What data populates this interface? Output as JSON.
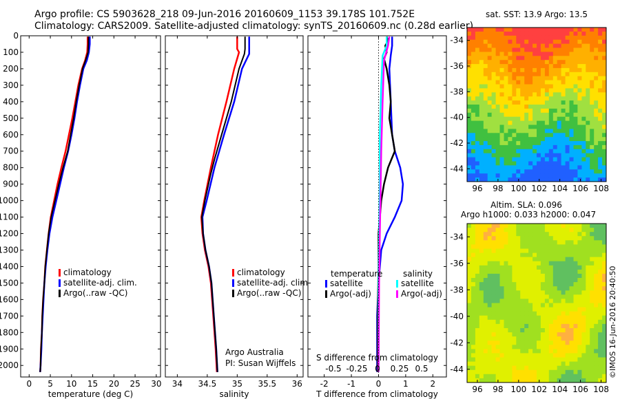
{
  "header": {
    "line1": "Argo profile: CS 5903628_218 09-Jun-2016 20160609_1153 39.178S 101.752E",
    "line2": "Climatology: CARS2009. Satellite-adjusted climatology: synTS_20160609.nc (0.28d earlier)"
  },
  "credits": {
    "line1": "Argo Australia",
    "line2": "PI: Susan Wijffels"
  },
  "stamp": "©IMOS 16-Jun-2016 20:40:50",
  "colors": {
    "climatology": "#ff0000",
    "satellite": "#0000ff",
    "argo": "#000000",
    "sat_salinity": "#00ffff",
    "argo_salinity": "#ff00ff"
  },
  "chart_data": [
    {
      "type": "line",
      "xlabel": "temperature (deg C)",
      "xlim": [
        -2,
        31
      ],
      "ylim": [
        2070,
        0
      ],
      "xticks": [
        0,
        5,
        10,
        15,
        20,
        25,
        30
      ],
      "yticks": [
        0,
        100,
        200,
        300,
        400,
        500,
        600,
        700,
        800,
        900,
        1000,
        1100,
        1200,
        1300,
        1400,
        1500,
        1600,
        1700,
        1800,
        1900,
        2000
      ],
      "legend": [
        "climatology",
        "satellite-adj. clim.",
        "Argo(..raw -QC)"
      ],
      "series": [
        {
          "name": "climatology",
          "points": [
            [
              13.8,
              5
            ],
            [
              13.8,
              50
            ],
            [
              13.7,
              100
            ],
            [
              13.2,
              150
            ],
            [
              12.5,
              200
            ],
            [
              11.6,
              300
            ],
            [
              10.9,
              400
            ],
            [
              10.2,
              500
            ],
            [
              9.4,
              600
            ],
            [
              8.6,
              700
            ],
            [
              7.6,
              800
            ],
            [
              6.7,
              900
            ],
            [
              5.9,
              1000
            ],
            [
              5.1,
              1100
            ],
            [
              4.6,
              1200
            ],
            [
              4.2,
              1300
            ],
            [
              3.8,
              1400
            ],
            [
              3.6,
              1500
            ],
            [
              3.3,
              1600
            ],
            [
              3.1,
              1700
            ],
            [
              3.0,
              1800
            ],
            [
              2.8,
              1900
            ],
            [
              2.7,
              2000
            ],
            [
              2.6,
              2040
            ]
          ]
        },
        {
          "name": "satellite-adj. clim.",
          "points": [
            [
              14.3,
              5
            ],
            [
              14.3,
              50
            ],
            [
              14.1,
              100
            ],
            [
              13.6,
              150
            ],
            [
              12.8,
              200
            ],
            [
              12.0,
              300
            ],
            [
              11.3,
              400
            ],
            [
              10.7,
              500
            ],
            [
              10.0,
              600
            ],
            [
              9.2,
              700
            ],
            [
              8.2,
              800
            ],
            [
              7.3,
              900
            ],
            [
              6.4,
              1000
            ],
            [
              5.5,
              1100
            ],
            [
              4.8,
              1200
            ],
            [
              4.3,
              1300
            ],
            [
              3.9,
              1400
            ],
            [
              3.6,
              1500
            ],
            [
              3.4,
              1600
            ],
            [
              3.2,
              1700
            ],
            [
              3.0,
              1800
            ],
            [
              2.9,
              1900
            ],
            [
              2.7,
              2000
            ],
            [
              2.6,
              2040
            ]
          ]
        },
        {
          "name": "Argo(..raw -QC)",
          "points": [
            [
              14.0,
              5
            ],
            [
              14.0,
              50
            ],
            [
              13.9,
              100
            ],
            [
              13.3,
              150
            ],
            [
              12.6,
              200
            ],
            [
              11.8,
              300
            ],
            [
              11.1,
              400
            ],
            [
              10.5,
              500
            ],
            [
              9.8,
              600
            ],
            [
              9.1,
              700
            ],
            [
              8.0,
              800
            ],
            [
              7.0,
              900
            ],
            [
              6.1,
              1000
            ],
            [
              5.2,
              1100
            ],
            [
              4.6,
              1200
            ],
            [
              4.2,
              1300
            ],
            [
              3.8,
              1400
            ],
            [
              3.6,
              1500
            ],
            [
              3.3,
              1600
            ],
            [
              3.1,
              1700
            ],
            [
              3.0,
              1800
            ],
            [
              2.8,
              1900
            ],
            [
              2.7,
              2000
            ],
            [
              2.6,
              2040
            ]
          ]
        }
      ]
    },
    {
      "type": "line",
      "xlabel": "salinity",
      "xlim": [
        33.8,
        36.1
      ],
      "ylim": [
        2070,
        0
      ],
      "xticks": [
        34,
        34.5,
        35,
        35.5,
        36
      ],
      "legend": [
        "climatology",
        "satellite-adj. clim.",
        "Argo(..raw -QC)"
      ],
      "series": [
        {
          "name": "climatology",
          "points": [
            [
              35.0,
              5
            ],
            [
              35.0,
              80
            ],
            [
              35.03,
              100
            ],
            [
              34.95,
              200
            ],
            [
              34.82,
              400
            ],
            [
              34.68,
              600
            ],
            [
              34.56,
              800
            ],
            [
              34.45,
              1000
            ],
            [
              34.4,
              1100
            ],
            [
              34.42,
              1200
            ],
            [
              34.46,
              1300
            ],
            [
              34.52,
              1400
            ],
            [
              34.56,
              1500
            ],
            [
              34.6,
              1700
            ],
            [
              34.64,
              1900
            ],
            [
              34.66,
              2040
            ]
          ]
        },
        {
          "name": "satellite-adj. clim.",
          "points": [
            [
              35.2,
              5
            ],
            [
              35.2,
              80
            ],
            [
              35.2,
              110
            ],
            [
              35.08,
              200
            ],
            [
              34.95,
              400
            ],
            [
              34.78,
              600
            ],
            [
              34.62,
              800
            ],
            [
              34.49,
              1000
            ],
            [
              34.42,
              1100
            ],
            [
              34.43,
              1200
            ],
            [
              34.47,
              1300
            ],
            [
              34.53,
              1400
            ],
            [
              34.57,
              1500
            ],
            [
              34.61,
              1700
            ],
            [
              34.65,
              1900
            ],
            [
              34.67,
              2040
            ]
          ]
        },
        {
          "name": "Argo(..raw -QC)",
          "points": [
            [
              35.13,
              5
            ],
            [
              35.13,
              80
            ],
            [
              35.12,
              110
            ],
            [
              35.03,
              200
            ],
            [
              34.9,
              400
            ],
            [
              34.74,
              600
            ],
            [
              34.62,
              750
            ],
            [
              34.55,
              850
            ],
            [
              34.46,
              1000
            ],
            [
              34.41,
              1100
            ],
            [
              34.43,
              1200
            ],
            [
              34.47,
              1300
            ],
            [
              34.53,
              1400
            ],
            [
              34.57,
              1500
            ],
            [
              34.61,
              1700
            ],
            [
              34.65,
              1900
            ],
            [
              34.67,
              2040
            ]
          ]
        }
      ]
    },
    {
      "type": "line",
      "xlabel": "T difference from climatology",
      "top_xlabel": "S difference from climatology",
      "xlim": [
        -2.6,
        2.5
      ],
      "ylim": [
        2070,
        0
      ],
      "xticks": [
        -2,
        -1,
        0,
        1,
        2
      ],
      "top_xticks": [
        "-0.5",
        "-0.25",
        "0",
        "0.25",
        "0.5"
      ],
      "legend_titles": [
        "temperature",
        "salinity"
      ],
      "legend": [
        "satellite",
        "Argo(-adj)",
        "satellite",
        "Argo(-adj)"
      ],
      "series": [
        {
          "name": "satellite",
          "group": "temperature",
          "points": [
            [
              0.5,
              5
            ],
            [
              0.5,
              60
            ],
            [
              0.45,
              120
            ],
            [
              0.4,
              200
            ],
            [
              0.45,
              400
            ],
            [
              0.5,
              600
            ],
            [
              0.6,
              700
            ],
            [
              0.8,
              800
            ],
            [
              0.9,
              900
            ],
            [
              0.85,
              1000
            ],
            [
              0.6,
              1100
            ],
            [
              0.3,
              1200
            ],
            [
              0.1,
              1300
            ],
            [
              0.05,
              1400
            ],
            [
              0,
              1500
            ],
            [
              -0.05,
              1700
            ],
            [
              -0.05,
              2040
            ]
          ]
        },
        {
          "name": "Argo(-adj)",
          "group": "temperature",
          "points": [
            [
              0.3,
              5
            ],
            [
              0.35,
              30
            ],
            [
              0.25,
              60
            ],
            [
              0.3,
              100
            ],
            [
              0.2,
              140
            ],
            [
              0.3,
              200
            ],
            [
              0.4,
              300
            ],
            [
              0.45,
              400
            ],
            [
              0.4,
              500
            ],
            [
              0.5,
              600
            ],
            [
              0.6,
              700
            ],
            [
              0.35,
              800
            ],
            [
              0.2,
              900
            ],
            [
              0.1,
              1000
            ],
            [
              0.05,
              1100
            ],
            [
              0,
              1200
            ],
            [
              0,
              1400
            ],
            [
              -0.03,
              1700
            ],
            [
              -0.03,
              2040
            ]
          ]
        },
        {
          "name": "satellite",
          "group": "salinity",
          "points": [
            [
              0.3,
              5
            ],
            [
              0.3,
              60
            ],
            [
              0.15,
              120
            ],
            [
              0.1,
              300
            ],
            [
              0.05,
              600
            ],
            [
              0.05,
              900
            ],
            [
              0.02,
              1200
            ],
            [
              0,
              1500
            ],
            [
              0,
              2040
            ]
          ]
        },
        {
          "name": "Argo(-adj)",
          "group": "salinity",
          "points": [
            [
              0.4,
              5
            ],
            [
              0.35,
              60
            ],
            [
              0.2,
              150
            ],
            [
              0.15,
              400
            ],
            [
              0.1,
              700
            ],
            [
              0.08,
              900
            ],
            [
              0.06,
              1100
            ],
            [
              0.04,
              1300
            ],
            [
              0.02,
              1500
            ],
            [
              0,
              2040
            ]
          ]
        }
      ]
    },
    {
      "type": "heatmap",
      "title": "sat. SST: 13.9 Argo: 13.5",
      "xlim": [
        95,
        108.5
      ],
      "ylim": [
        -45,
        -33
      ],
      "xticks": [
        96,
        98,
        100,
        102,
        104,
        106,
        108
      ],
      "yticks": [
        -34,
        -36,
        -38,
        -40,
        -42,
        -44
      ],
      "colormap": "jet",
      "palette": [
        "#ff4040",
        "#ff8000",
        "#ffb000",
        "#ffe000",
        "#a0e040",
        "#40c040",
        "#00b0ff",
        "#2060ff"
      ]
    },
    {
      "type": "heatmap",
      "title": "Altim. SLA: 0.096",
      "subtitle": "Argo h1000: 0.033 h2000: 0.047",
      "xlim": [
        95,
        108.5
      ],
      "ylim": [
        -45,
        -33
      ],
      "xticks": [
        96,
        98,
        100,
        102,
        104,
        106,
        108
      ],
      "yticks": [
        -34,
        -36,
        -38,
        -40,
        -42,
        -44
      ],
      "colormap": "jet",
      "palette": [
        "#60c060",
        "#a0e020",
        "#e0f000",
        "#ffe000",
        "#ffb040"
      ]
    }
  ]
}
